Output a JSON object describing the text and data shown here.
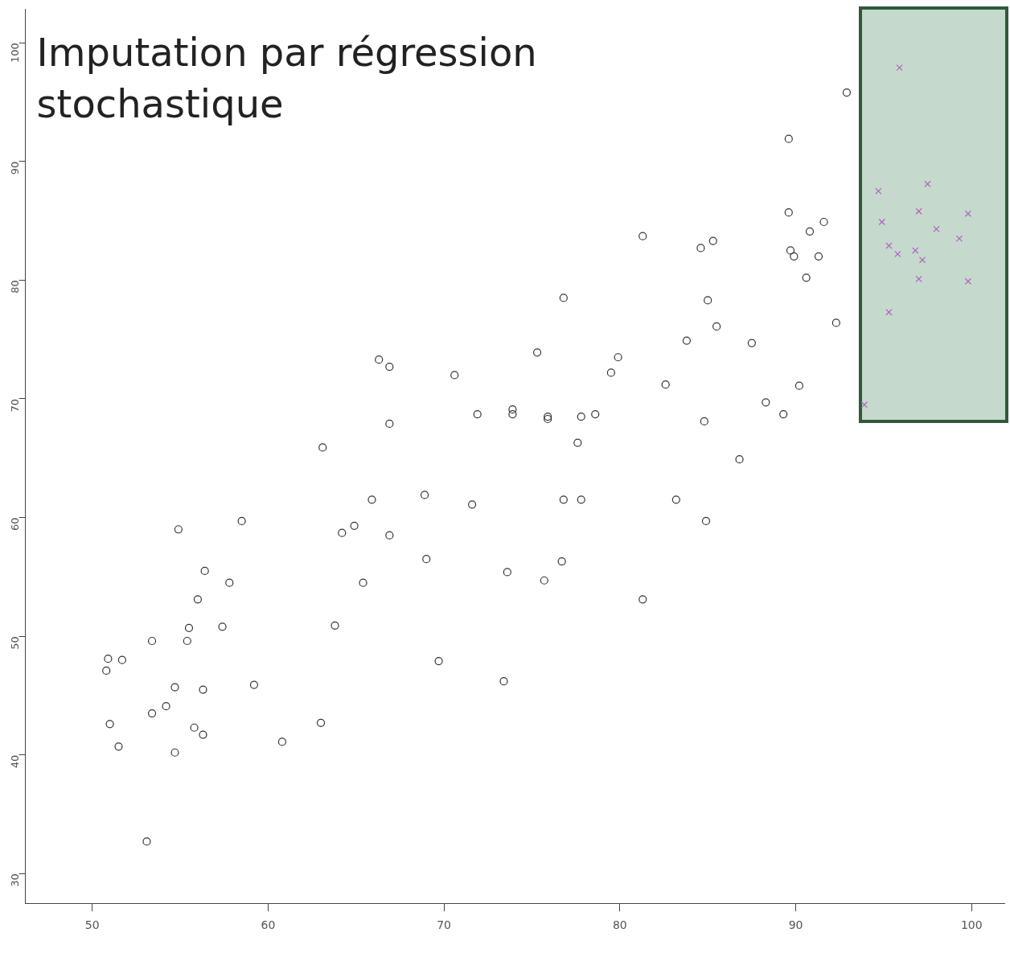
{
  "chart_data": {
    "type": "scatter",
    "title": "Imputation par régression stochastique",
    "xlim": [
      46.2,
      101.9
    ],
    "xticks": [
      50,
      60,
      70,
      80,
      90,
      100
    ],
    "ylim": [
      27.5,
      102.8
    ],
    "yticks": [
      30,
      40,
      50,
      60,
      70,
      80,
      90,
      100
    ],
    "grid": false,
    "legend": false,
    "series": [
      {
        "color": "#333333",
        "marker": "circle",
        "x": [
          92.9,
          89.6,
          89.6,
          91.6,
          90.8,
          89.7,
          89.9,
          91.3,
          90.6,
          81.3,
          84.6,
          85.3,
          85.0,
          85.5,
          92.3,
          87.5,
          83.8,
          76.8,
          75.3,
          79.9,
          79.5,
          82.6,
          90.2,
          88.3,
          89.3,
          84.8,
          70.6,
          71.9,
          73.9,
          73.9,
          75.9,
          75.9,
          77.8,
          78.6,
          77.6,
          66.3,
          66.9,
          66.9,
          63.1,
          86.8,
          65.9,
          68.9,
          71.6,
          76.8,
          77.8,
          83.2,
          84.9,
          54.9,
          58.5,
          64.2,
          64.9,
          66.9,
          69.0,
          65.4,
          73.6,
          75.7,
          76.7,
          81.3,
          56.4,
          57.8,
          56.0,
          55.5,
          57.4,
          55.4,
          53.4,
          63.8,
          69.7,
          59.2,
          73.4,
          50.9,
          51.7,
          50.8,
          54.7,
          56.3,
          54.2,
          53.4,
          51.0,
          55.8,
          56.3,
          63.0,
          51.5,
          54.7,
          60.8,
          53.1
        ],
        "values": [
          95.8,
          91.9,
          85.7,
          84.9,
          84.1,
          82.5,
          82.0,
          82.0,
          80.2,
          83.7,
          82.7,
          83.3,
          78.3,
          76.1,
          76.4,
          74.7,
          74.9,
          78.5,
          73.9,
          73.5,
          72.2,
          71.2,
          71.1,
          69.7,
          68.7,
          68.1,
          72.0,
          68.7,
          69.1,
          68.7,
          68.3,
          68.5,
          68.5,
          68.7,
          66.3,
          73.3,
          72.7,
          67.9,
          65.9,
          64.9,
          61.5,
          61.9,
          61.1,
          61.5,
          61.5,
          61.5,
          59.7,
          59.0,
          59.7,
          58.7,
          59.3,
          58.5,
          56.5,
          54.5,
          55.4,
          54.7,
          56.3,
          53.1,
          55.5,
          54.5,
          53.1,
          50.7,
          50.8,
          49.6,
          49.6,
          50.9,
          47.9,
          45.9,
          46.2,
          48.1,
          48.0,
          47.1,
          45.7,
          45.5,
          44.1,
          43.5,
          42.6,
          42.3,
          41.7,
          42.7,
          40.7,
          40.2,
          41.1,
          32.7
        ]
      },
      {
        "color": "#b35fc2",
        "marker": "cross",
        "x": [
          95.9,
          94.7,
          97.5,
          94.9,
          97.0,
          99.8,
          98.0,
          99.3,
          95.3,
          95.8,
          96.8,
          97.2,
          97.0,
          99.8,
          95.3,
          93.9
        ],
        "values": [
          97.9,
          87.5,
          88.1,
          84.9,
          85.8,
          85.6,
          84.3,
          83.5,
          82.9,
          82.2,
          82.5,
          81.7,
          80.1,
          79.9,
          77.3,
          69.5
        ]
      }
    ]
  }
}
